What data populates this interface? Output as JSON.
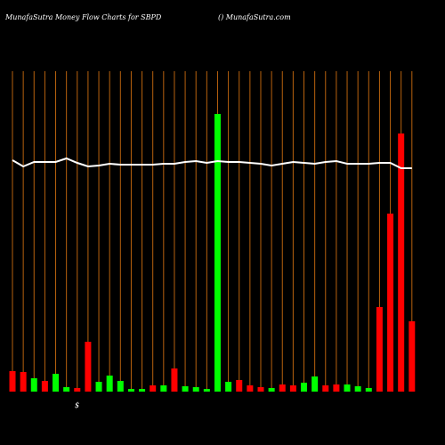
{
  "chart_data": {
    "type": "bar",
    "title": "MunafaSutra  Money Flow  Charts for SBPD",
    "subtitle": "() MunafaSutra.com",
    "annotation": "$",
    "ylim": [
      0,
      360
    ],
    "values": [
      23,
      22,
      15,
      12,
      20,
      5,
      4,
      56,
      11,
      18,
      12,
      3,
      3,
      7,
      7,
      26,
      6,
      5,
      3,
      312,
      11,
      13,
      7,
      5,
      4,
      8,
      7,
      10,
      17,
      7,
      8,
      8,
      6,
      4,
      95,
      200,
      290,
      79
    ],
    "colors": [
      "#ff0000",
      "#ff0000",
      "#00ff00",
      "#ff0000",
      "#00ff00",
      "#00ff00",
      "#ff0000",
      "#ff0000",
      "#00ff00",
      "#00ff00",
      "#00ff00",
      "#00ff00",
      "#00ff00",
      "#ff0000",
      "#00ff00",
      "#ff0000",
      "#00ff00",
      "#00ff00",
      "#00ff00",
      "#00ff00",
      "#00ff00",
      "#ff0000",
      "#ff0000",
      "#ff0000",
      "#00ff00",
      "#ff0000",
      "#ff0000",
      "#00ff00",
      "#00ff00",
      "#ff0000",
      "#ff0000",
      "#00ff00",
      "#00ff00",
      "#00ff00",
      "#ff0000",
      "#ff0000",
      "#ff0000",
      "#ff0000"
    ],
    "line_values": [
      260,
      253,
      258,
      258,
      258,
      262,
      257,
      253,
      254,
      256,
      255,
      255,
      255,
      255,
      256,
      256,
      258,
      259,
      257,
      259,
      258,
      258,
      257,
      256,
      254,
      256,
      258,
      257,
      256,
      258,
      259,
      256,
      256,
      256,
      257,
      257,
      251,
      251
    ],
    "line_color": "#ffffff",
    "grid_color": "#b8620e"
  }
}
